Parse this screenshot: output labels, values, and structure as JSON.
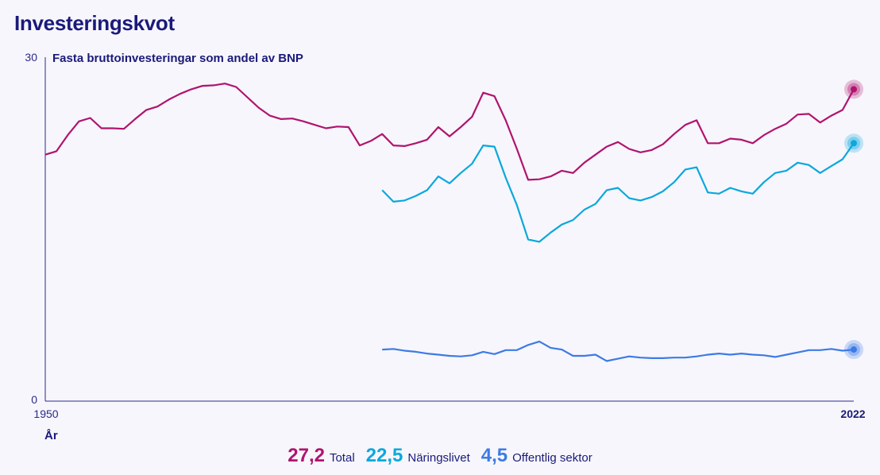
{
  "header": {
    "title": "Investeringskvot"
  },
  "colors": {
    "axis": "#2a2a8a",
    "text": "#1a1a7a"
  },
  "chart_data": {
    "type": "line",
    "subtitle": "Fasta bruttoinvesteringar som andel av BNP",
    "xlabel": "År",
    "ylabel": "",
    "xlim": [
      1950,
      2022
    ],
    "ylim": [
      0,
      30
    ],
    "y_ticks": [
      "30",
      "0"
    ],
    "x_ticks": [
      "1950",
      "2022"
    ],
    "grid": false,
    "legend_position": "bottom-center",
    "series": [
      {
        "name": "Total",
        "color": "#b0146e",
        "latest_label": "27,2",
        "x": [
          1950,
          1951,
          1952,
          1953,
          1954,
          1955,
          1956,
          1957,
          1958,
          1959,
          1960,
          1961,
          1962,
          1963,
          1964,
          1965,
          1966,
          1967,
          1968,
          1969,
          1970,
          1971,
          1972,
          1973,
          1974,
          1975,
          1976,
          1977,
          1978,
          1979,
          1980,
          1981,
          1982,
          1983,
          1984,
          1985,
          1986,
          1987,
          1988,
          1989,
          1990,
          1991,
          1992,
          1993,
          1994,
          1995,
          1996,
          1997,
          1998,
          1999,
          2000,
          2001,
          2002,
          2003,
          2004,
          2005,
          2006,
          2007,
          2008,
          2009,
          2010,
          2011,
          2012,
          2013,
          2014,
          2015,
          2016,
          2017,
          2018,
          2019,
          2020,
          2021,
          2022
        ],
        "values": [
          21.5,
          21.8,
          23.2,
          24.4,
          24.7,
          23.8,
          23.8,
          23.75,
          24.6,
          25.4,
          25.7,
          26.3,
          26.8,
          27.2,
          27.5,
          27.55,
          27.7,
          27.4,
          26.5,
          25.6,
          24.9,
          24.6,
          24.65,
          24.4,
          24.1,
          23.8,
          23.95,
          23.9,
          22.3,
          22.7,
          23.3,
          22.3,
          22.25,
          22.5,
          22.8,
          23.9,
          23.1,
          23.9,
          24.8,
          26.9,
          26.6,
          24.5,
          22.0,
          19.3,
          19.35,
          19.6,
          20.1,
          19.9,
          20.8,
          21.5,
          22.2,
          22.6,
          22.0,
          21.7,
          21.9,
          22.4,
          23.3,
          24.1,
          24.5,
          22.5,
          22.5,
          22.9,
          22.8,
          22.5,
          23.2,
          23.75,
          24.2,
          25.0,
          25.05,
          24.3,
          24.9,
          25.4,
          27.2
        ]
      },
      {
        "name": "Näringslivet",
        "color": "#0aa8dc",
        "latest_label": "22,5",
        "x": [
          1980,
          1981,
          1982,
          1983,
          1984,
          1985,
          1986,
          1987,
          1988,
          1989,
          1990,
          1991,
          1992,
          1993,
          1994,
          1995,
          1996,
          1997,
          1998,
          1999,
          2000,
          2001,
          2002,
          2003,
          2004,
          2005,
          2006,
          2007,
          2008,
          2009,
          2010,
          2011,
          2012,
          2013,
          2014,
          2015,
          2016,
          2017,
          2018,
          2019,
          2020,
          2021,
          2022
        ],
        "values": [
          18.4,
          17.4,
          17.5,
          17.9,
          18.4,
          19.6,
          19.0,
          19.9,
          20.7,
          22.3,
          22.2,
          19.5,
          17.1,
          14.1,
          13.9,
          14.7,
          15.4,
          15.8,
          16.7,
          17.2,
          18.4,
          18.6,
          17.7,
          17.5,
          17.8,
          18.3,
          19.1,
          20.2,
          20.4,
          18.2,
          18.1,
          18.6,
          18.3,
          18.1,
          19.1,
          19.9,
          20.1,
          20.8,
          20.6,
          19.9,
          20.5,
          21.1,
          22.5
        ]
      },
      {
        "name": "Offentlig sektor",
        "color": "#3c7be6",
        "latest_label": "4,5",
        "x": [
          1980,
          1981,
          1982,
          1983,
          1984,
          1985,
          1986,
          1987,
          1988,
          1989,
          1990,
          1991,
          1992,
          1993,
          1994,
          1995,
          1996,
          1997,
          1998,
          1999,
          2000,
          2001,
          2002,
          2003,
          2004,
          2005,
          2006,
          2007,
          2008,
          2009,
          2010,
          2011,
          2012,
          2013,
          2014,
          2015,
          2016,
          2017,
          2018,
          2019,
          2020,
          2021,
          2022
        ],
        "values": [
          4.5,
          4.55,
          4.4,
          4.3,
          4.15,
          4.05,
          3.95,
          3.9,
          4.0,
          4.3,
          4.1,
          4.45,
          4.45,
          4.9,
          5.2,
          4.65,
          4.5,
          3.95,
          3.95,
          4.05,
          3.5,
          3.7,
          3.9,
          3.8,
          3.75,
          3.75,
          3.8,
          3.8,
          3.9,
          4.05,
          4.15,
          4.05,
          4.15,
          4.05,
          4.0,
          3.85,
          4.05,
          4.25,
          4.45,
          4.45,
          4.55,
          4.4,
          4.5
        ]
      }
    ]
  }
}
